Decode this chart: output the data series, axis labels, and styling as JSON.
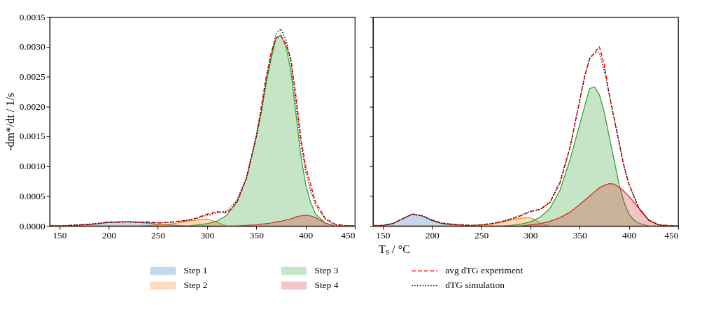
{
  "chart_data": [
    {
      "type": "area",
      "xlabel": "Tₛ / °C",
      "ylabel": "-dm*/dt / 1/s",
      "xlim": [
        140,
        450
      ],
      "ylim": [
        0,
        0.0035
      ],
      "xticks": [
        150,
        200,
        250,
        300,
        350,
        400,
        450
      ],
      "yticks": [
        {
          "value": 0,
          "label": "0.0000"
        },
        {
          "value": 0.0005,
          "label": "0.0005"
        },
        {
          "value": 0.001,
          "label": "0.0010"
        },
        {
          "value": 0.0015,
          "label": "0.0015"
        },
        {
          "value": 0.002,
          "label": "0.0020"
        },
        {
          "value": 0.0025,
          "label": "0.0025"
        },
        {
          "value": 0.003,
          "label": "0.0030"
        },
        {
          "value": 0.0035,
          "label": "0.0035"
        }
      ],
      "legend": "bottom",
      "grid": false,
      "x": [
        140,
        150,
        160,
        170,
        180,
        190,
        200,
        210,
        220,
        230,
        240,
        250,
        260,
        270,
        280,
        290,
        300,
        310,
        320,
        330,
        340,
        350,
        355,
        360,
        365,
        370,
        375,
        380,
        385,
        390,
        395,
        400,
        405,
        410,
        420,
        430,
        440,
        450
      ],
      "series": [
        {
          "name": "Step 1",
          "color": "#1f77b4",
          "values": [
            0,
            0,
            0,
            1e-05,
            2e-05,
            4e-05,
            6e-05,
            7e-05,
            7e-05,
            6e-05,
            5e-05,
            3e-05,
            2e-05,
            1e-05,
            0,
            0,
            0,
            0,
            0,
            0,
            0,
            0,
            0,
            0,
            0,
            0,
            0,
            0,
            0,
            0,
            0,
            0,
            0,
            0,
            0,
            0,
            0,
            0
          ]
        },
        {
          "name": "Step 2",
          "color": "#ff7f0e",
          "values": [
            0,
            0,
            0,
            0,
            0,
            0,
            0,
            0,
            0,
            0,
            1e-05,
            2e-05,
            3e-05,
            5e-05,
            8e-05,
            0.0001,
            0.00012,
            6e-05,
            0,
            0,
            0,
            0,
            0,
            0,
            0,
            0,
            0,
            0,
            0,
            0,
            0,
            0,
            0,
            0,
            0,
            0,
            0,
            0
          ]
        },
        {
          "name": "Step 3",
          "color": "#2ca02c",
          "values": [
            0,
            0,
            0,
            0,
            0,
            0,
            0,
            0,
            0,
            0,
            0,
            0,
            0,
            0,
            0,
            2e-05,
            4e-05,
            8e-05,
            0.00018,
            0.0004,
            0.0008,
            0.0015,
            0.0019,
            0.0024,
            0.0028,
            0.00315,
            0.0032,
            0.003,
            0.0026,
            0.0019,
            0.0012,
            0.0007,
            0.0004,
            0.0002,
            5e-05,
            0,
            0,
            0
          ]
        },
        {
          "name": "Step 4",
          "color": "#d62728",
          "values": [
            0,
            0,
            0,
            0,
            0,
            0,
            0,
            0,
            0,
            0,
            0,
            0,
            0,
            0,
            0,
            0,
            0,
            0,
            0,
            0,
            1e-05,
            2e-05,
            3e-05,
            4e-05,
            5e-05,
            7e-05,
            8e-05,
            0.0001,
            0.00012,
            0.00015,
            0.00017,
            0.00018,
            0.00017,
            0.00014,
            5e-05,
            0,
            0,
            0
          ]
        },
        {
          "name": "avg dTG experiment",
          "type": "line",
          "line_style": "dashed",
          "color": "#ff0000",
          "values": [
            1e-05,
            0,
            1e-05,
            2e-05,
            3e-05,
            4e-05,
            7e-05,
            6e-05,
            7e-05,
            6e-05,
            7e-05,
            5e-05,
            6e-05,
            8e-05,
            9e-05,
            0.00014,
            0.0002,
            0.00024,
            0.00022,
            0.00038,
            0.0008,
            0.0015,
            0.002,
            0.0025,
            0.0029,
            0.00315,
            0.00318,
            0.00305,
            0.0028,
            0.0022,
            0.0015,
            0.001,
            0.0007,
            0.0004,
            0.00013,
            3e-05,
            1e-05,
            0
          ]
        },
        {
          "name": "dTG simulation",
          "type": "line",
          "line_style": "dotted",
          "color": "#000000",
          "values": [
            0,
            0,
            1e-05,
            2e-05,
            3e-05,
            5e-05,
            6e-05,
            7e-05,
            7e-05,
            7e-05,
            6e-05,
            6e-05,
            6e-05,
            7e-05,
            0.0001,
            0.00013,
            0.00018,
            0.00022,
            0.00025,
            0.00042,
            0.00082,
            0.00152,
            0.00193,
            0.00245,
            0.00285,
            0.00322,
            0.0033,
            0.00312,
            0.00275,
            0.00208,
            0.0014,
            0.00092,
            0.0006,
            0.00035,
            0.00011,
            2e-05,
            0,
            0
          ]
        }
      ]
    },
    {
      "type": "area",
      "xlim": [
        140,
        450
      ],
      "ylim": [
        0,
        0.0035
      ],
      "tick_labels": "x",
      "xticks": [
        150,
        200,
        250,
        300,
        350,
        400,
        450
      ],
      "yticks": [
        {
          "value": 0,
          "label": null
        },
        {
          "value": 0.0005,
          "label": null
        },
        {
          "value": 0.001,
          "label": null
        },
        {
          "value": 0.0015,
          "label": null
        },
        {
          "value": 0.002,
          "label": null
        },
        {
          "value": 0.0025,
          "label": null
        },
        {
          "value": 0.003,
          "label": null
        },
        {
          "value": 0.0035,
          "label": null
        }
      ],
      "grid": false,
      "x": [
        140,
        150,
        160,
        170,
        180,
        190,
        200,
        210,
        220,
        230,
        240,
        250,
        260,
        270,
        280,
        290,
        300,
        310,
        320,
        330,
        340,
        350,
        355,
        360,
        365,
        370,
        375,
        380,
        385,
        390,
        395,
        400,
        405,
        410,
        420,
        430,
        440,
        450
      ],
      "series": [
        {
          "color": "#1f77b4",
          "values": [
            0,
            1e-05,
            4e-05,
            0.00012,
            0.0002,
            0.00017,
            9e-05,
            4e-05,
            2e-05,
            1e-05,
            0,
            0,
            0,
            0,
            0,
            0,
            0,
            0,
            0,
            0,
            0,
            0,
            0,
            0,
            0,
            0,
            0,
            0,
            0,
            0,
            0,
            0,
            0,
            0,
            0,
            0,
            0,
            0
          ]
        },
        {
          "color": "#ff7f0e",
          "values": [
            0,
            0,
            0,
            0,
            0,
            0,
            0,
            0,
            0,
            0,
            0,
            1e-05,
            3e-05,
            6e-05,
            0.0001,
            0.00013,
            0.00014,
            5e-05,
            0,
            0,
            0,
            0,
            0,
            0,
            0,
            0,
            0,
            0,
            0,
            0,
            0,
            0,
            0,
            0,
            0,
            0,
            0,
            0
          ]
        },
        {
          "color": "#2ca02c",
          "values": [
            0,
            0,
            0,
            0,
            0,
            0,
            0,
            0,
            0,
            0,
            0,
            0,
            0,
            0,
            1e-05,
            3e-05,
            7e-05,
            0.00015,
            0.0003,
            0.0006,
            0.0011,
            0.0017,
            0.002,
            0.0023,
            0.00233,
            0.0022,
            0.0019,
            0.0015,
            0.0011,
            0.0007,
            0.0004,
            0.0002,
            0.0001,
            5e-05,
            0,
            0,
            0,
            0
          ]
        },
        {
          "color": "#d62728",
          "values": [
            0,
            0,
            0,
            0,
            0,
            0,
            0,
            0,
            0,
            0,
            0,
            0,
            0,
            0,
            0,
            0,
            2e-05,
            4e-05,
            8e-05,
            0.00014,
            0.00023,
            0.00036,
            0.00043,
            0.0005,
            0.00057,
            0.00064,
            0.00068,
            0.00071,
            0.0007,
            0.00065,
            0.00058,
            0.0005,
            0.0004,
            0.0003,
            0.0001,
            2e-05,
            0,
            0
          ]
        },
        {
          "type": "line",
          "line_style": "dashed",
          "color": "#ff0000",
          "values": [
            1e-05,
            1e-05,
            4e-05,
            0.00012,
            0.0002,
            0.00017,
            0.0001,
            5e-05,
            3e-05,
            2e-05,
            1e-05,
            2e-05,
            4e-05,
            7e-05,
            0.00011,
            0.00017,
            0.00024,
            0.00028,
            0.0004,
            0.00072,
            0.0013,
            0.0021,
            0.0025,
            0.0028,
            0.0029,
            0.003,
            0.0027,
            0.0022,
            0.0018,
            0.0014,
            0.001,
            0.0007,
            0.0005,
            0.0003,
            0.0001,
            2e-05,
            1e-05,
            0
          ]
        },
        {
          "type": "line",
          "line_style": "dotted",
          "color": "#000000",
          "values": [
            0,
            1e-05,
            4e-05,
            0.00012,
            0.0002,
            0.00017,
            0.0001,
            5e-05,
            3e-05,
            2e-05,
            1e-05,
            2e-05,
            4e-05,
            7e-05,
            0.00012,
            0.00018,
            0.00025,
            0.00028,
            0.0004,
            0.00075,
            0.0013,
            0.0021,
            0.0025,
            0.0028,
            0.0029,
            0.0029,
            0.0026,
            0.0022,
            0.0018,
            0.0014,
            0.001,
            0.0007,
            0.0005,
            0.0003,
            0.0001,
            2e-05,
            0,
            0
          ]
        }
      ]
    }
  ]
}
